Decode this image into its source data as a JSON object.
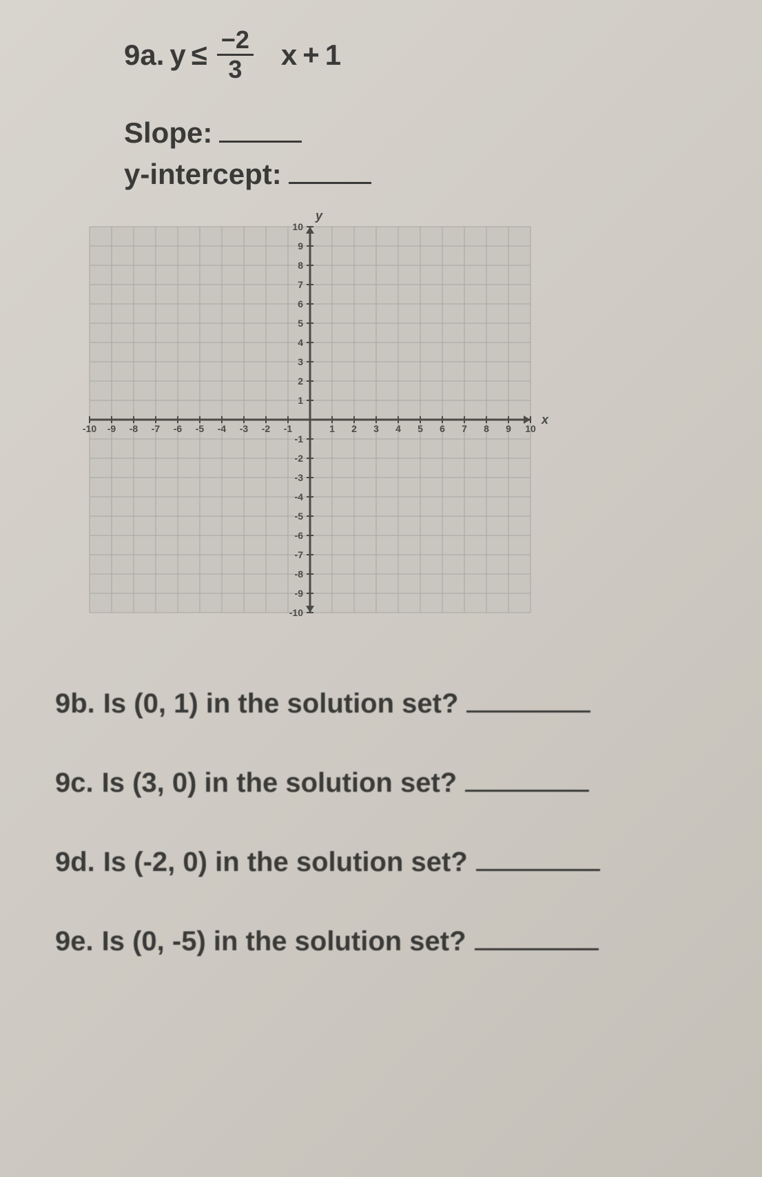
{
  "problem": {
    "number": "9a.",
    "lhs": "y",
    "relation": "≤",
    "fraction": {
      "numerator": "−2",
      "denominator": "3"
    },
    "var": "x",
    "plus": "+",
    "constant": "1"
  },
  "fields": {
    "slope_label": "Slope:",
    "yint_label": "y-intercept:"
  },
  "graph": {
    "x_label": "x",
    "y_label": "y",
    "xmin": -10,
    "xmax": 10,
    "ymin": -10,
    "ymax": 10,
    "tick_step": 1,
    "grid_color": "#a8a6a0",
    "axis_color": "#4a4a46",
    "text_color": "#4a4a46",
    "background": "#c9c6bf",
    "label_fontsize": 18,
    "tick_fontsize": 14,
    "x_ticks": [
      -10,
      -9,
      -8,
      -7,
      -6,
      -5,
      -4,
      -3,
      -2,
      -1,
      1,
      2,
      3,
      4,
      5,
      6,
      7,
      8,
      9,
      10
    ],
    "y_ticks": [
      -10,
      -9,
      -8,
      -7,
      -6,
      -5,
      -4,
      -3,
      -2,
      -1,
      1,
      2,
      3,
      4,
      5,
      6,
      7,
      8,
      9,
      10
    ]
  },
  "questions": {
    "b": {
      "label": "9b.",
      "text_prefix": "Is (",
      "point": "0, 1",
      "text_suffix": ") in the solution set?"
    },
    "c": {
      "label": "9c.",
      "text_prefix": "Is (",
      "point": "3, 0",
      "text_suffix": ") in the solution set?"
    },
    "d": {
      "label": "9d.",
      "text_prefix": "Is (",
      "point": "-2, 0",
      "text_suffix": ") in the solution set?"
    },
    "e": {
      "label": "9e.",
      "text_prefix": "Is (",
      "point": "0, -5",
      "text_suffix": ") in the solution set?"
    }
  }
}
